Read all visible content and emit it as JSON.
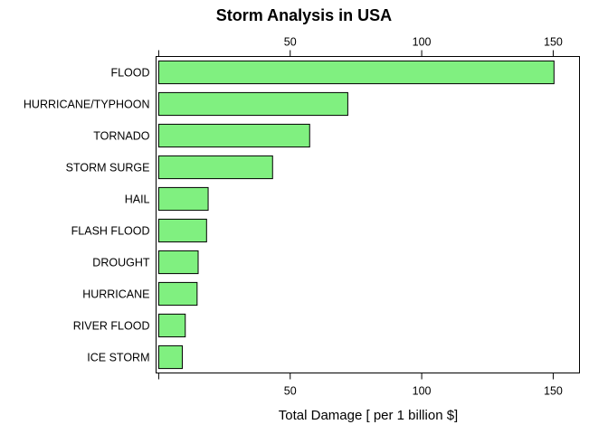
{
  "chart_data": {
    "type": "bar",
    "orientation": "horizontal",
    "title": "Storm Analysis in USA",
    "xlabel": "Total Damage [ per 1 billion $]",
    "ylabel": "",
    "categories": [
      "FLOOD",
      "HURRICANE/TYPHOON",
      "TORNADO",
      "STORM SURGE",
      "HAIL",
      "FLASH FLOOD",
      "DROUGHT",
      "HURRICANE",
      "RIVER FLOOD",
      "ICE STORM"
    ],
    "values": [
      150.3,
      71.9,
      57.4,
      43.3,
      18.8,
      18.2,
      15.0,
      14.6,
      10.1,
      8.97
    ],
    "xlim": [
      -1,
      160
    ],
    "xticks": [
      0,
      50,
      100,
      150
    ],
    "xtick_labels": [
      "",
      "50",
      "100",
      "150"
    ],
    "bar_color": "#80f080",
    "grid": false
  }
}
